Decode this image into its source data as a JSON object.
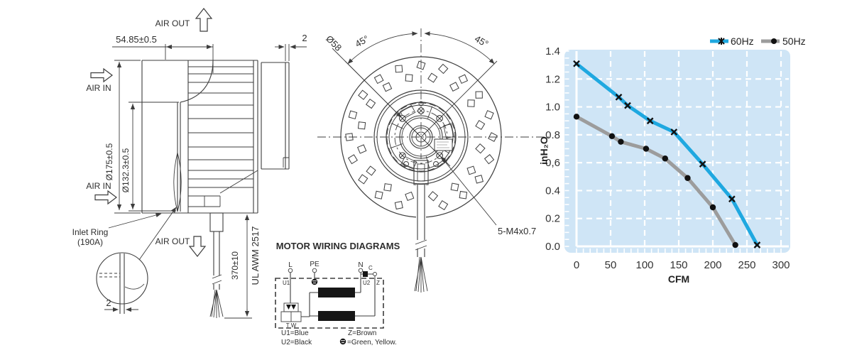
{
  "drawing_side": {
    "air_out_top": "AIR OUT",
    "air_in_upper": "AIR IN",
    "air_in_lower": "AIR IN",
    "air_out_bottom": "AIR OUT",
    "dim_depth": "54.85±0.5",
    "dim_rear_gap": "2",
    "dim_outer_dia": "Ø175±0.5",
    "dim_inlet_dia": "Ø132.3±0.5",
    "dim_lead_length": "370±10",
    "lead_spec": "UL AWM 2517",
    "inlet_ring_line1": "Inlet Ring",
    "inlet_ring_line2": "(190A)",
    "dim_detail_gap": "2"
  },
  "drawing_front": {
    "dim_angle_left": "45°",
    "dim_angle_right": "45°",
    "dim_bolt_circle": "Ø58",
    "screw_callout": "5-M4x0.7"
  },
  "wiring": {
    "title": "MOTOR WIRING DIAGRAMS",
    "terminal_l": "L",
    "terminal_pe": "PE",
    "terminal_n": "N",
    "capacitor": "C",
    "node_u1": "U1",
    "node_u2": "U2",
    "node_z": "Z",
    "thermal": "T W",
    "legend_u1": "U1=Blue",
    "legend_u2": "U2=Black",
    "legend_z": "Z=Brown",
    "legend_ground": "=Green, Yellow."
  },
  "chart_data": {
    "type": "line",
    "title": "",
    "xlabel": "CFM",
    "ylabel": "inH₂O",
    "xlim": [
      0,
      300
    ],
    "ylim": [
      0,
      1.4
    ],
    "xticks": [
      0,
      50,
      100,
      150,
      200,
      250,
      300
    ],
    "ytick_values": [
      0,
      0.2,
      0.4,
      0.6,
      0.8,
      1.0,
      1.2,
      1.4
    ],
    "ytick_labels": [
      "0.0",
      "0.2",
      "0.4",
      "0,6",
      "0.8",
      "1.0",
      "1.2",
      "1.4"
    ],
    "grid": "white dashed on light blue",
    "legend_position": "top-right",
    "plot_bg": "#cfe5f6",
    "series": [
      {
        "name": "60Hz",
        "color": "#1fa8e0",
        "marker": "x",
        "points": [
          [
            0,
            1.31
          ],
          [
            62,
            1.07
          ],
          [
            75,
            1.01
          ],
          [
            108,
            0.9
          ],
          [
            143,
            0.82
          ],
          [
            185,
            0.59
          ],
          [
            228,
            0.34
          ],
          [
            265,
            0.01
          ]
        ]
      },
      {
        "name": "50Hz",
        "color": "#9c9c9c",
        "marker": "dot",
        "points": [
          [
            0,
            0.93
          ],
          [
            52,
            0.79
          ],
          [
            65,
            0.75
          ],
          [
            102,
            0.7
          ],
          [
            130,
            0.63
          ],
          [
            163,
            0.49
          ],
          [
            200,
            0.28
          ],
          [
            233,
            0.01
          ]
        ]
      }
    ]
  },
  "colors": {
    "line_art": "#3d3d3d",
    "marker": "#111111",
    "grid": "#ffffff"
  }
}
